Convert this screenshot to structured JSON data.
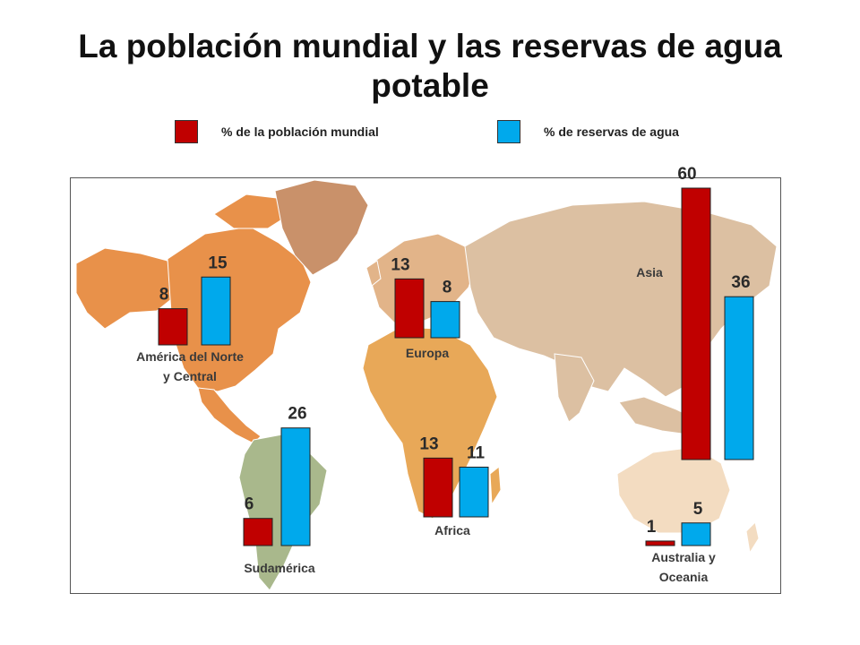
{
  "chart_data": {
    "type": "bar",
    "title": "La población mundial y las reservas de agua potable",
    "legend": [
      {
        "name": "% de la población mundial",
        "color": "#c00000"
      },
      {
        "name": "% de reservas de agua",
        "color": "#00a9ec"
      }
    ],
    "categories": [
      {
        "lines": [
          "América del Norte",
          "y Central"
        ],
        "key": "america-norte-central"
      },
      {
        "lines": [
          "Sudamérica"
        ],
        "key": "sudamerica"
      },
      {
        "lines": [
          "Europa"
        ],
        "key": "europa"
      },
      {
        "lines": [
          "Africa"
        ],
        "key": "africa"
      },
      {
        "lines": [
          "Asia"
        ],
        "key": "asia"
      },
      {
        "lines": [
          "Australia y",
          "Oceania"
        ],
        "key": "australia-oceania"
      }
    ],
    "series": [
      {
        "name": "% de la población mundial",
        "values": [
          8,
          6,
          13,
          13,
          60,
          1
        ]
      },
      {
        "name": "% de reservas de agua",
        "values": [
          15,
          26,
          8,
          11,
          36,
          5
        ]
      }
    ],
    "background": "world map"
  },
  "colors": {
    "population": "#c00000",
    "water": "#00a9ec",
    "ocean": "#ffffff",
    "north_america": "#e8914a",
    "greenland": "#c9916a",
    "south_america": "#a9b88c",
    "europe": "#e2b489",
    "africa": "#e8a858",
    "asia": "#dcc0a2",
    "oceania": "#f3dcc1"
  }
}
